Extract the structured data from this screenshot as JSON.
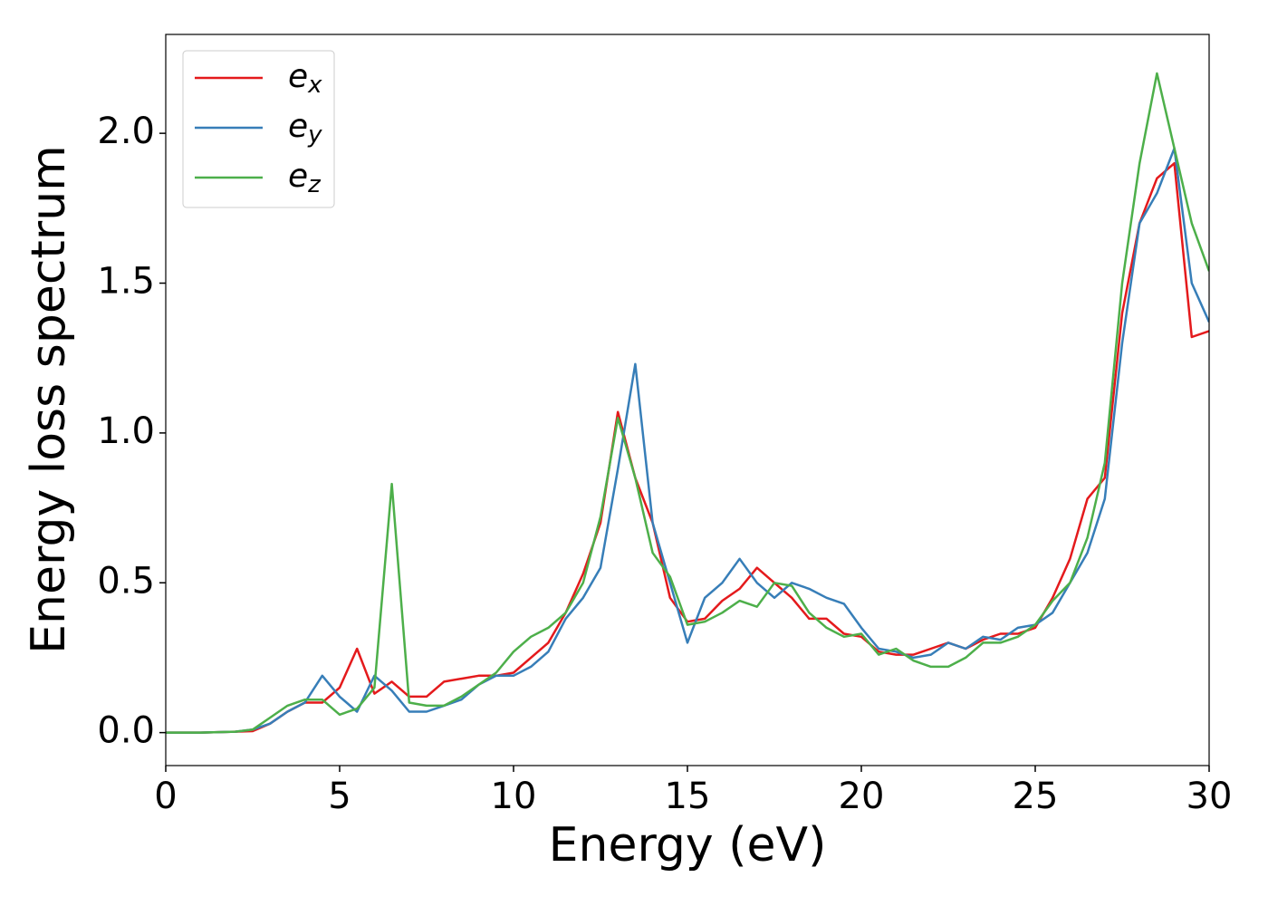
{
  "chart_data": {
    "type": "line",
    "xlabel": "Energy (eV)",
    "ylabel": "Energy loss spectrum",
    "x": [
      0,
      1,
      2,
      2.5,
      3,
      3.5,
      4,
      4.5,
      5,
      5.5,
      6,
      6.5,
      7,
      7.5,
      8,
      8.5,
      9,
      9.5,
      10,
      10.5,
      11,
      11.5,
      12,
      12.5,
      13,
      13.5,
      14,
      14.5,
      15,
      15.5,
      16,
      16.5,
      17,
      17.5,
      18,
      18.5,
      19,
      19.5,
      20,
      20.5,
      21,
      21.5,
      22,
      22.5,
      23,
      23.5,
      24,
      24.5,
      25,
      25.5,
      26,
      26.5,
      27,
      27.5,
      28,
      28.5,
      29,
      29.5,
      30
    ],
    "series": [
      {
        "name": "ex",
        "color": "#e41a1c",
        "values": [
          0,
          0,
          0.003,
          0.005,
          0.03,
          0.07,
          0.1,
          0.1,
          0.15,
          0.28,
          0.13,
          0.17,
          0.12,
          0.12,
          0.17,
          0.18,
          0.19,
          0.19,
          0.2,
          0.25,
          0.3,
          0.4,
          0.53,
          0.7,
          1.07,
          0.85,
          0.7,
          0.45,
          0.37,
          0.38,
          0.44,
          0.48,
          0.55,
          0.5,
          0.45,
          0.38,
          0.38,
          0.33,
          0.32,
          0.27,
          0.26,
          0.26,
          0.28,
          0.3,
          0.28,
          0.31,
          0.33,
          0.33,
          0.35,
          0.45,
          0.58,
          0.78,
          0.85,
          1.4,
          1.7,
          1.85,
          1.9,
          1.32,
          1.34
        ]
      },
      {
        "name": "ey",
        "color": "#377eb8",
        "values": [
          0,
          0,
          0.003,
          0.01,
          0.03,
          0.07,
          0.1,
          0.19,
          0.12,
          0.07,
          0.19,
          0.14,
          0.07,
          0.07,
          0.09,
          0.11,
          0.16,
          0.19,
          0.19,
          0.22,
          0.27,
          0.38,
          0.45,
          0.55,
          0.88,
          1.23,
          0.7,
          0.5,
          0.3,
          0.45,
          0.5,
          0.58,
          0.5,
          0.45,
          0.5,
          0.48,
          0.45,
          0.43,
          0.35,
          0.28,
          0.27,
          0.25,
          0.26,
          0.3,
          0.28,
          0.32,
          0.31,
          0.35,
          0.36,
          0.4,
          0.5,
          0.6,
          0.78,
          1.3,
          1.7,
          1.8,
          1.95,
          1.5,
          1.37
        ]
      },
      {
        "name": "ez",
        "color": "#4daf4a",
        "values": [
          0,
          0,
          0.003,
          0.01,
          0.05,
          0.09,
          0.11,
          0.11,
          0.06,
          0.08,
          0.15,
          0.83,
          0.1,
          0.09,
          0.09,
          0.12,
          0.16,
          0.2,
          0.27,
          0.32,
          0.35,
          0.4,
          0.5,
          0.72,
          1.05,
          0.85,
          0.6,
          0.52,
          0.36,
          0.37,
          0.4,
          0.44,
          0.42,
          0.5,
          0.49,
          0.4,
          0.35,
          0.32,
          0.33,
          0.26,
          0.28,
          0.24,
          0.22,
          0.22,
          0.25,
          0.3,
          0.3,
          0.32,
          0.36,
          0.44,
          0.5,
          0.65,
          0.9,
          1.5,
          1.9,
          2.2,
          1.95,
          1.7,
          1.54
        ]
      }
    ],
    "xlim": [
      0,
      30
    ],
    "xticks": [
      0,
      5,
      10,
      15,
      20,
      25,
      30
    ],
    "ylim": [
      -0.11,
      2.33
    ],
    "yticks": [
      {
        "value": 0,
        "label": "0.0"
      },
      0.5,
      {
        "value": 1,
        "label": "1.0"
      },
      1.5,
      {
        "value": 2,
        "label": "2.0"
      }
    ],
    "legend": "upper left"
  }
}
